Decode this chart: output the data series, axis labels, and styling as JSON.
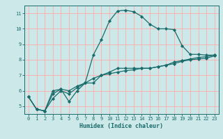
{
  "xlabel": "Humidex (Indice chaleur)",
  "ylabel": "",
  "bg_color": "#cce8e8",
  "grid_color": "#ffaaaa",
  "line_color": "#1a6b6b",
  "xlim": [
    -0.5,
    23.5
  ],
  "ylim": [
    4.5,
    11.5
  ],
  "xticks": [
    0,
    1,
    2,
    3,
    4,
    5,
    6,
    7,
    8,
    9,
    10,
    11,
    12,
    13,
    14,
    15,
    16,
    17,
    18,
    19,
    20,
    21,
    22,
    23
  ],
  "yticks": [
    5,
    6,
    7,
    8,
    9,
    10,
    11
  ],
  "series": [
    [
      5.6,
      4.8,
      4.7,
      6.0,
      6.1,
      5.3,
      6.0,
      6.5,
      8.3,
      9.3,
      10.5,
      11.15,
      11.2,
      11.1,
      10.8,
      10.3,
      10.0,
      10.0,
      9.95,
      8.9,
      8.35,
      8.35,
      8.3,
      8.3
    ],
    [
      5.6,
      4.8,
      4.7,
      5.5,
      6.0,
      5.8,
      6.2,
      6.5,
      6.5,
      7.0,
      7.2,
      7.45,
      7.45,
      7.45,
      7.45,
      7.45,
      7.55,
      7.65,
      7.85,
      7.95,
      8.05,
      8.15,
      8.2,
      8.3
    ],
    [
      5.6,
      4.8,
      4.7,
      5.8,
      6.1,
      6.0,
      6.3,
      6.5,
      6.8,
      7.0,
      7.1,
      7.2,
      7.3,
      7.35,
      7.45,
      7.45,
      7.55,
      7.65,
      7.75,
      7.9,
      8.0,
      8.05,
      8.1,
      8.25
    ]
  ],
  "marker": "D",
  "markersize": 2.2,
  "linewidth": 0.9,
  "tick_fontsize": 5.0,
  "xlabel_fontsize": 6.0
}
